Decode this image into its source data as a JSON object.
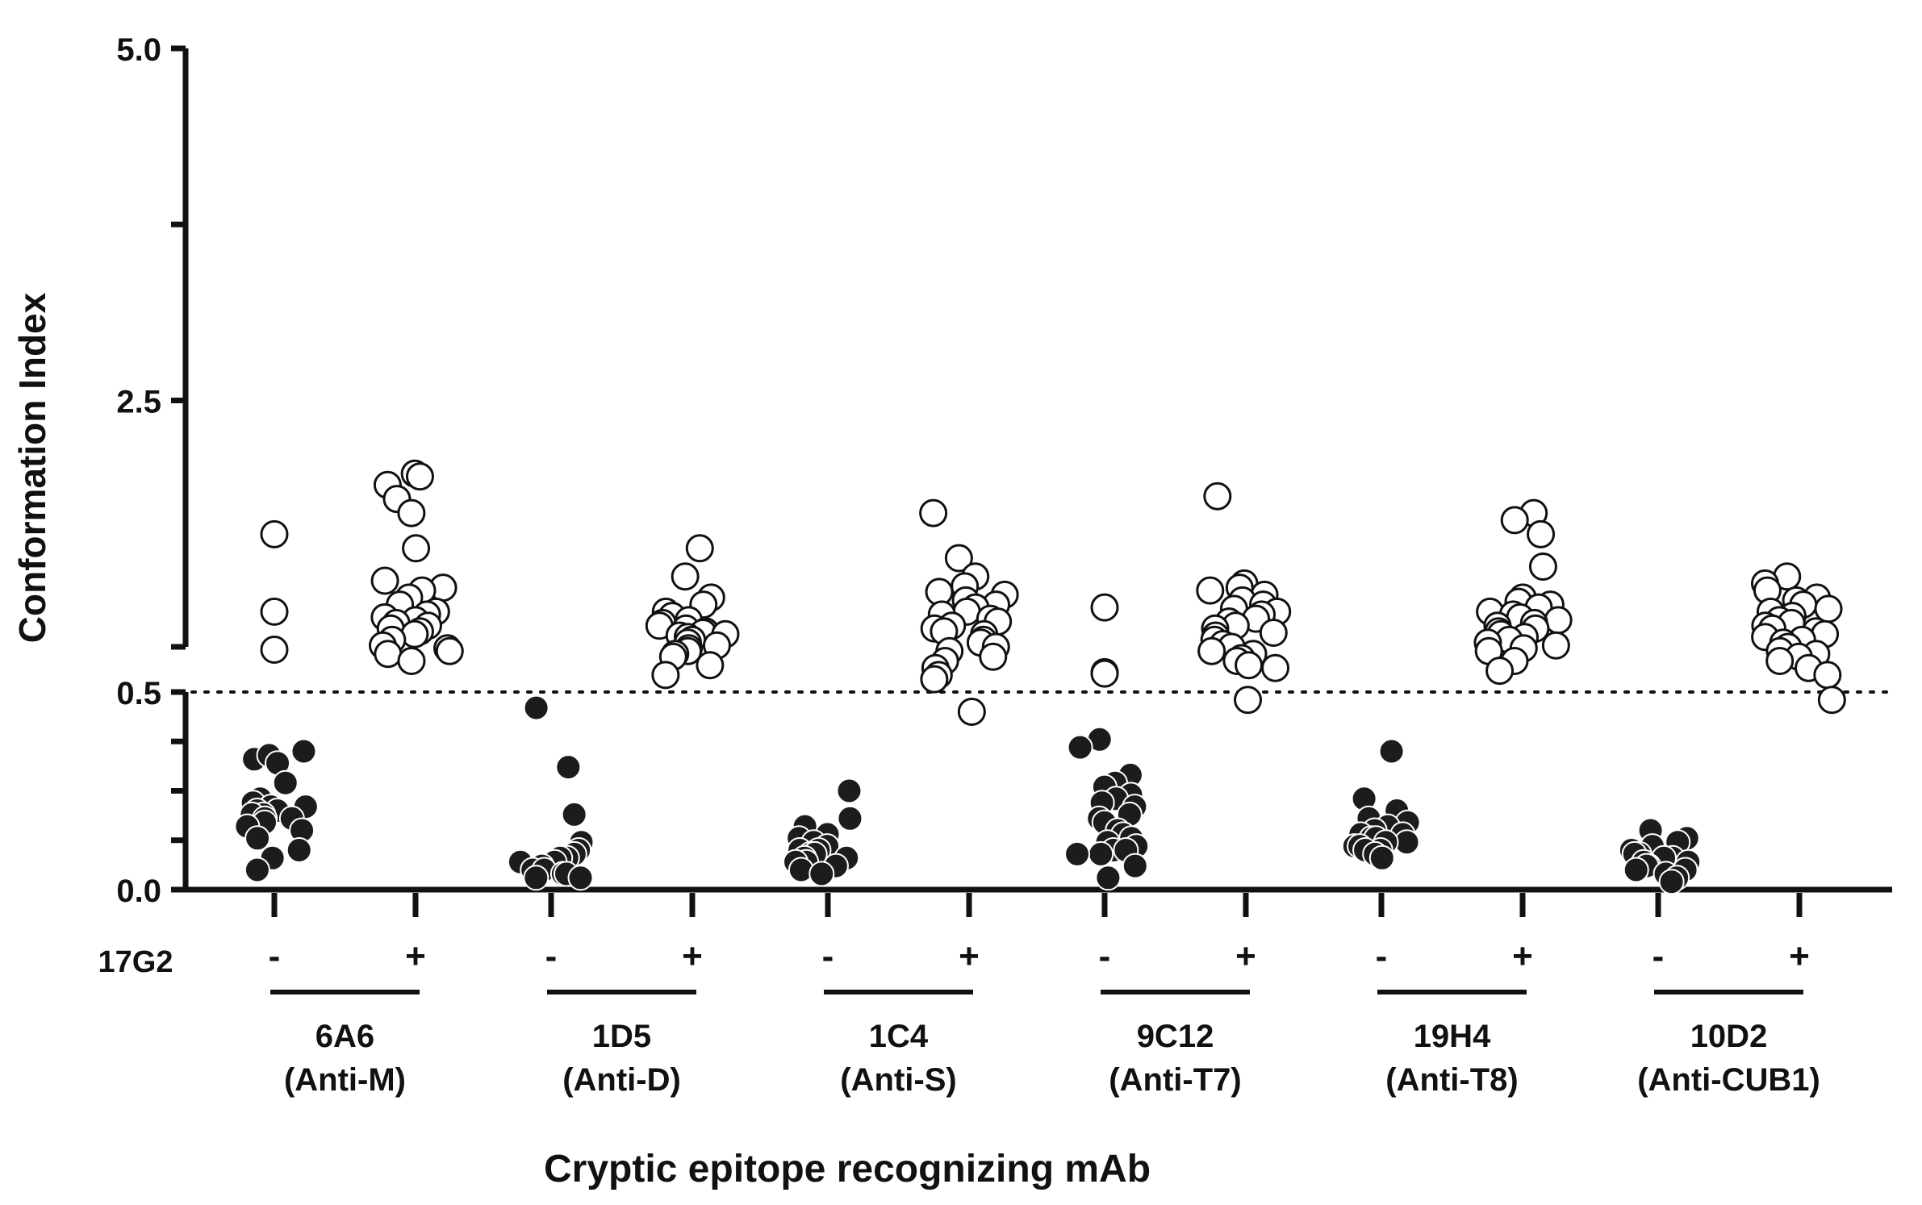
{
  "chart_data": {
    "type": "scatter",
    "title": "",
    "xlabel": "Cryptic epitope recognizing mAb",
    "ylabel": "Conformation Index",
    "y_axis": {
      "segments": [
        {
          "range": [
            0.0,
            0.5
          ],
          "ticks": [
            0.0,
            0.125,
            0.25,
            0.375,
            0.5
          ],
          "tick_labels": [
            "0.0",
            "",
            "",
            "",
            "0.5"
          ]
        },
        {
          "range": [
            0.75,
            5.0
          ],
          "ticks": [
            0.75,
            2.5,
            3.75,
            5.0
          ],
          "tick_labels": [
            "",
            "2.5",
            "",
            "5.0"
          ]
        }
      ]
    },
    "reference_line": {
      "value": 0.5,
      "style": "dotted"
    },
    "condition_label": "17G2",
    "conditions": [
      "-",
      "+"
    ],
    "groups": [
      {
        "mab": "6A6",
        "target": "(Anti-M)",
        "minus": [
          0.35,
          0.33,
          0.34,
          0.32,
          0.27,
          0.23,
          0.22,
          0.21,
          0.21,
          0.2,
          0.2,
          0.19,
          0.19,
          0.18,
          0.18,
          0.17,
          0.16,
          0.15,
          0.13,
          0.1,
          0.08,
          0.05
        ],
        "minus_high": [
          1.55,
          1.0,
          0.73
        ],
        "plus": [
          1.98,
          1.96,
          1.9,
          1.8,
          1.7,
          1.45,
          1.22,
          1.17,
          1.15,
          1.1,
          1.05,
          1.0,
          0.98,
          0.96,
          0.94,
          0.92,
          0.9,
          0.88,
          0.86,
          0.84,
          0.8,
          0.76,
          0.74,
          0.72,
          0.7,
          0.65
        ]
      },
      {
        "mab": "1D5",
        "target": "(Anti-D)",
        "minus": [
          0.46,
          0.31,
          0.19,
          0.12,
          0.1,
          0.09,
          0.08,
          0.08,
          0.07,
          0.07,
          0.06,
          0.06,
          0.05,
          0.05,
          0.04,
          0.04,
          0.03,
          0.03
        ],
        "plus": [
          1.45,
          1.25,
          1.1,
          1.05,
          1.0,
          0.97,
          0.94,
          0.92,
          0.9,
          0.88,
          0.86,
          0.85,
          0.84,
          0.83,
          0.82,
          0.8,
          0.78,
          0.76,
          0.74,
          0.72,
          0.7,
          0.68,
          0.62,
          0.55
        ]
      },
      {
        "mab": "1C4",
        "target": "(Anti-S)",
        "minus": [
          0.25,
          0.18,
          0.16,
          0.14,
          0.13,
          0.12,
          0.11,
          0.1,
          0.1,
          0.09,
          0.09,
          0.08,
          0.08,
          0.07,
          0.07,
          0.06,
          0.05,
          0.04
        ],
        "plus": [
          1.7,
          1.38,
          1.25,
          1.18,
          1.14,
          1.12,
          1.08,
          1.05,
          1.03,
          1.0,
          0.98,
          0.95,
          0.93,
          0.9,
          0.88,
          0.86,
          0.84,
          0.8,
          0.78,
          0.75,
          0.72,
          0.68,
          0.65,
          0.6,
          0.55,
          0.52,
          0.45
        ]
      },
      {
        "mab": "9C12",
        "target": "(Anti-T7)",
        "minus": [
          0.38,
          0.36,
          0.29,
          0.27,
          0.26,
          0.24,
          0.23,
          0.22,
          0.21,
          0.19,
          0.18,
          0.17,
          0.15,
          0.14,
          0.13,
          0.12,
          0.11,
          0.1,
          0.1,
          0.09,
          0.09,
          0.06,
          0.03
        ],
        "minus_high": [
          1.03,
          0.57,
          0.56
        ],
        "plus": [
          1.82,
          1.2,
          1.17,
          1.15,
          1.12,
          1.08,
          1.05,
          1.02,
          1.0,
          0.98,
          0.95,
          0.93,
          0.9,
          0.88,
          0.85,
          0.83,
          0.8,
          0.77,
          0.75,
          0.72,
          0.7,
          0.67,
          0.65,
          0.62,
          0.6,
          0.48
        ]
      },
      {
        "mab": "19H4",
        "target": "(Anti-T8)",
        "minus": [
          0.35,
          0.23,
          0.2,
          0.18,
          0.17,
          0.16,
          0.15,
          0.14,
          0.14,
          0.13,
          0.13,
          0.12,
          0.12,
          0.11,
          0.11,
          0.1,
          0.1,
          0.09,
          0.08
        ],
        "plus": [
          1.7,
          1.65,
          1.55,
          1.32,
          1.1,
          1.07,
          1.05,
          1.03,
          1.0,
          0.98,
          0.96,
          0.94,
          0.92,
          0.9,
          0.88,
          0.86,
          0.84,
          0.82,
          0.8,
          0.78,
          0.76,
          0.74,
          0.72,
          0.65,
          0.58
        ]
      },
      {
        "mab": "10D2",
        "target": "(Anti-CUB1)",
        "minus": [
          0.15,
          0.13,
          0.12,
          0.11,
          0.1,
          0.09,
          0.09,
          0.08,
          0.08,
          0.07,
          0.07,
          0.06,
          0.06,
          0.05,
          0.05,
          0.04,
          0.03,
          0.02
        ],
        "plus": [
          1.25,
          1.2,
          1.15,
          1.1,
          1.08,
          1.05,
          1.02,
          1.0,
          0.97,
          0.94,
          0.92,
          0.9,
          0.88,
          0.86,
          0.84,
          0.82,
          0.8,
          0.78,
          0.75,
          0.72,
          0.7,
          0.68,
          0.65,
          0.6,
          0.55,
          0.48
        ]
      }
    ]
  }
}
